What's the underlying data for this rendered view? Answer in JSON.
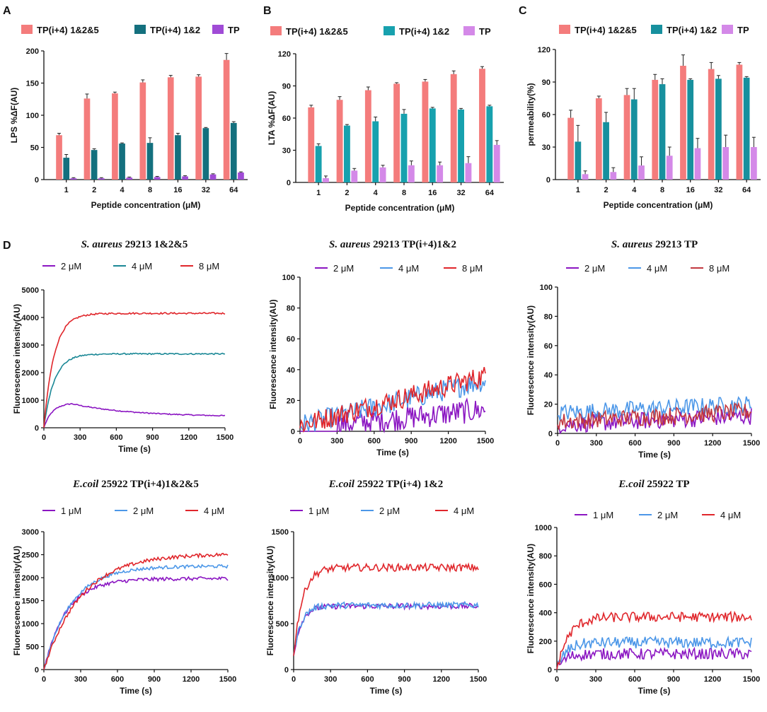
{
  "panel_letters": {
    "A": "A",
    "B": "B",
    "C": "C",
    "D": "D"
  },
  "colors": {
    "salmon": "#F47C7C",
    "teal": "#17909E",
    "lavender": "#D489E8",
    "purple": "#8B16C2",
    "blue": "#4C97E8",
    "red": "#E0262B",
    "dark_teal": "#1B8896"
  },
  "chart_data": [
    {
      "id": "A",
      "type": "bar",
      "categories": [
        "1",
        "2",
        "4",
        "8",
        "16",
        "32",
        "64"
      ],
      "xlabel": "Peptide concentration (μM)",
      "ylabel": "LPS  %ΔF(AU)",
      "ylim": [
        0,
        200
      ],
      "yticks": [
        0,
        50,
        100,
        150,
        200
      ],
      "series": [
        {
          "name": "TP(i+4) 1&2&5",
          "color": "#F47C7C",
          "values": [
            69,
            126,
            134,
            151,
            159,
            160,
            186
          ],
          "errors": [
            3,
            7,
            2,
            4,
            3,
            3,
            10
          ]
        },
        {
          "name": "TP(i+4) 1&2",
          "color": "#14707E",
          "values": [
            34,
            46,
            56,
            57,
            69,
            80,
            88
          ],
          "errors": [
            5,
            2,
            1,
            8,
            3,
            1,
            2
          ]
        },
        {
          "name": "TP",
          "color": "#A04BD6",
          "values": [
            2,
            2,
            3,
            4,
            5,
            8,
            11
          ],
          "errors": [
            1,
            1,
            1,
            1,
            1,
            1,
            1
          ]
        }
      ]
    },
    {
      "id": "B",
      "type": "bar",
      "categories": [
        "1",
        "2",
        "4",
        "8",
        "16",
        "32",
        "64"
      ],
      "xlabel": "Peptide concentration (μM)",
      "ylabel": "LTA %ΔF(AU)",
      "ylim": [
        0,
        120
      ],
      "yticks": [
        0,
        30,
        60,
        90,
        120
      ],
      "series": [
        {
          "name": "TP(i+4) 1&2&5",
          "color": "#F47C7C",
          "values": [
            70,
            77,
            86,
            92,
            94,
            101,
            106
          ],
          "errors": [
            2,
            3,
            3,
            1,
            2,
            3,
            2
          ]
        },
        {
          "name": "TP(i+4) 1&2",
          "color": "#17A1AE",
          "values": [
            34,
            53,
            57,
            64,
            69,
            68,
            71
          ],
          "errors": [
            2,
            1,
            4,
            4,
            1,
            1,
            1
          ]
        },
        {
          "name": "TP",
          "color": "#D489E8",
          "values": [
            4,
            11,
            14,
            16,
            16,
            18,
            35
          ],
          "errors": [
            2,
            2,
            2,
            4,
            3,
            6,
            4
          ]
        }
      ]
    },
    {
      "id": "C",
      "type": "bar",
      "categories": [
        "1",
        "2",
        "4",
        "8",
        "16",
        "32",
        "64"
      ],
      "xlabel": "Peptide concentration (μM)",
      "ylabel": "permeability(%)",
      "ylim": [
        0,
        120
      ],
      "yticks": [
        0,
        30,
        60,
        90,
        120
      ],
      "series": [
        {
          "name": "TP(i+4) 1&2&5",
          "color": "#F47C7C",
          "values": [
            57,
            75,
            78,
            92,
            105,
            102,
            106
          ],
          "errors": [
            7,
            2,
            6,
            5,
            10,
            6,
            2
          ]
        },
        {
          "name": "TP(i+4) 1&2",
          "color": "#17909E",
          "values": [
            35,
            53,
            74,
            88,
            92,
            93,
            94
          ],
          "errors": [
            15,
            9,
            10,
            5,
            1,
            3,
            1
          ]
        },
        {
          "name": "TP",
          "color": "#D489E8",
          "values": [
            5,
            7,
            13,
            22,
            29,
            30,
            30
          ],
          "errors": [
            3,
            4,
            8,
            8,
            9,
            11,
            9
          ]
        }
      ]
    },
    {
      "id": "D1",
      "type": "line",
      "title_italic": "S. aureus",
      "title_rest": " 29213 1&2&5",
      "xlabel": "Time (s)",
      "ylabel": "Fluorescence intensity(AU)",
      "xlim": [
        0,
        1500
      ],
      "xticks": [
        0,
        300,
        600,
        900,
        1200,
        1500
      ],
      "ylim": [
        0,
        5000
      ],
      "yticks": [
        0,
        1000,
        2000,
        3000,
        4000,
        5000
      ],
      "series": [
        {
          "name": "2 μM",
          "color": "#8B16C2",
          "plateau": 400,
          "peak": 870,
          "peak_t": 230,
          "rise_tau": 70,
          "noise": 20
        },
        {
          "name": "4 μM",
          "color": "#1B8896",
          "plateau": 2680,
          "rise_tau": 85,
          "noise": 25
        },
        {
          "name": "8 μM",
          "color": "#E0262B",
          "plateau": 4150,
          "rise_tau": 85,
          "noise": 30
        }
      ]
    },
    {
      "id": "D2",
      "type": "line",
      "title_italic": "S. aureus",
      "title_rest": " 29213  TP(i+4)1&2",
      "xlabel": "Time (s)",
      "ylabel": "Fluorescence intensity(AU)",
      "xlim": [
        0,
        1500
      ],
      "xticks": [
        0,
        300,
        600,
        900,
        1200,
        1500
      ],
      "ylim": [
        0,
        100
      ],
      "yticks": [
        0,
        20,
        40,
        60,
        80,
        100
      ],
      "series": [
        {
          "name": "2 μM",
          "color": "#8B16C2",
          "start": 2,
          "end": 14,
          "noise": 8,
          "onset": 300
        },
        {
          "name": "4 μM",
          "color": "#4C97E8",
          "start": 4,
          "end": 33,
          "noise": 7
        },
        {
          "name": "8 μM",
          "color": "#E0262B",
          "start": 4,
          "end": 36,
          "noise": 7
        }
      ]
    },
    {
      "id": "D3",
      "type": "line",
      "title_italic": "S. aureus",
      "title_rest": " 29213  TP",
      "xlabel": "Time (s)",
      "ylabel": "Fluorescence intensity(AU)",
      "xlim": [
        0,
        1500
      ],
      "xticks": [
        0,
        300,
        600,
        900,
        1200,
        1500
      ],
      "ylim": [
        0,
        100
      ],
      "yticks": [
        0,
        20,
        40,
        60,
        80,
        100
      ],
      "series": [
        {
          "name": "2 μM",
          "color": "#8B16C2",
          "start": 6,
          "end": 12,
          "noise": 6
        },
        {
          "name": "4 μM",
          "color": "#4C97E8",
          "start": 14,
          "end": 20,
          "noise": 6
        },
        {
          "name": "8 μM",
          "color": "#C2383F",
          "start": 8,
          "end": 15,
          "noise": 6
        }
      ]
    },
    {
      "id": "D4",
      "type": "line",
      "title_italic": "E.coil",
      "title_rest": " 25922 TP(i+4)1&2&5",
      "xlabel": "Time (s)",
      "ylabel": "Fluorescence intensity(AU)",
      "xlim": [
        0,
        1500
      ],
      "xticks": [
        0,
        300,
        600,
        900,
        1200,
        1500
      ],
      "ylim": [
        0,
        3000
      ],
      "yticks": [
        0,
        500,
        1000,
        1500,
        2000,
        2500,
        3000
      ],
      "series": [
        {
          "name": "1 μM",
          "color": "#8B16C2",
          "plateau": 1980,
          "rise_tau": 180,
          "noise": 40
        },
        {
          "name": "2 μM",
          "color": "#4C97E8",
          "plateau": 2250,
          "rise_tau": 220,
          "noise": 35
        },
        {
          "name": "4 μM",
          "color": "#E0262B",
          "plateau": 2520,
          "rise_tau": 300,
          "noise": 40
        }
      ]
    },
    {
      "id": "D5",
      "type": "line",
      "title_italic": "E.coil",
      "title_rest": " 25922  TP(i+4) 1&2",
      "xlabel": "Time (s)",
      "ylabel": "Fluorescence intensity(AU)",
      "xlim": [
        0,
        1500
      ],
      "xticks": [
        0,
        300,
        600,
        900,
        1200,
        1500
      ],
      "ylim": [
        0,
        1500
      ],
      "yticks": [
        0,
        500,
        1000,
        1500
      ],
      "series": [
        {
          "name": "1 μM",
          "color": "#8B16C2",
          "plateau": 690,
          "rise_tau": 60,
          "noise": 30,
          "base": 150
        },
        {
          "name": "2 μM",
          "color": "#4C97E8",
          "plateau": 700,
          "rise_tau": 60,
          "noise": 35,
          "base": 150
        },
        {
          "name": "4 μM",
          "color": "#E0262B",
          "plateau": 1110,
          "rise_tau": 70,
          "noise": 40,
          "base": 150
        }
      ]
    },
    {
      "id": "D6",
      "type": "line",
      "title_italic": "E.coil",
      "title_rest": " 25922   TP",
      "xlabel": "Time (s)",
      "ylabel": "Fluorescence intensity(AU)",
      "xlim": [
        0,
        1500
      ],
      "xticks": [
        0,
        300,
        600,
        900,
        1200,
        1500
      ],
      "ylim": [
        0,
        1000
      ],
      "yticks": [
        0,
        200,
        400,
        600,
        800,
        1000
      ],
      "series": [
        {
          "name": "1 μM",
          "color": "#8B16C2",
          "plateau": 110,
          "rise_tau": 60,
          "noise": 40
        },
        {
          "name": "2 μM",
          "color": "#4C97E8",
          "plateau": 190,
          "rise_tau": 70,
          "noise": 40
        },
        {
          "name": "4 μM",
          "color": "#E0262B",
          "plateau": 370,
          "rise_tau": 90,
          "noise": 35
        }
      ]
    }
  ]
}
